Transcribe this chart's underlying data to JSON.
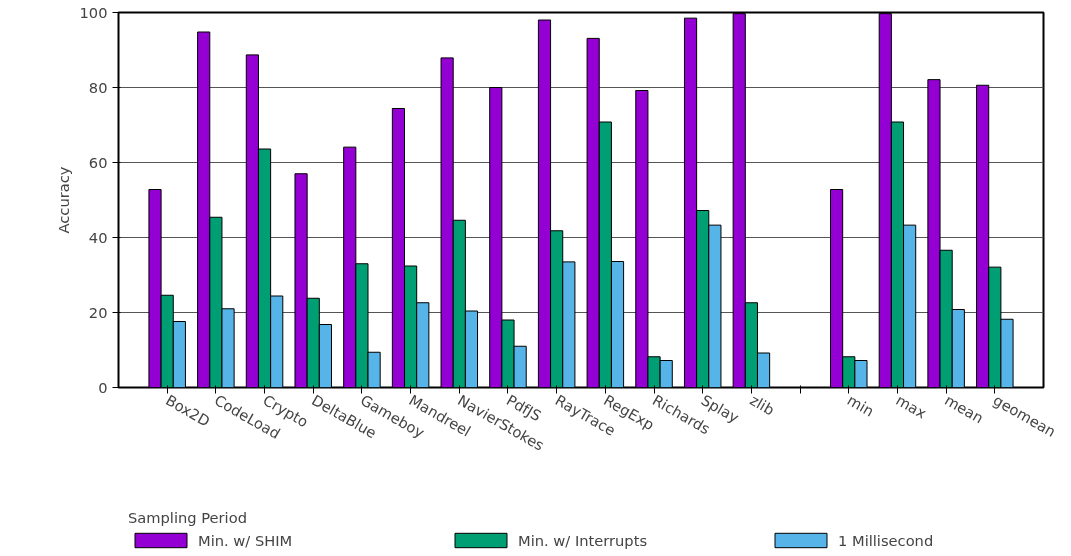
{
  "chart_data": {
    "type": "bar",
    "ylabel": "Accuracy",
    "legend_title": "Sampling Period",
    "categories": [
      "Box2D",
      "CodeLoad",
      "Crypto",
      "DeltaBlue",
      "Gameboy",
      "Mandreel",
      "NavierStokes",
      "PdfJS",
      "RayTrace",
      "RegExp",
      "Richards",
      "Splay",
      "zlib",
      null,
      "min",
      "max",
      "mean",
      "geomean"
    ],
    "series": [
      {
        "name": "Min. w/ SHIM",
        "color": "#9400d3",
        "values": [
          52.8,
          94.8,
          88.7,
          57,
          64.1,
          74.4,
          87.9,
          80,
          98,
          93.1,
          79.2,
          98.5,
          99.7,
          null,
          52.8,
          99.7,
          82.1,
          80.6
        ]
      },
      {
        "name": "Min. w/ Interrupts",
        "color": "#009e73",
        "values": [
          24.6,
          45.4,
          63.6,
          23.8,
          33,
          32.4,
          44.6,
          18,
          41.8,
          70.8,
          8.2,
          47.2,
          22.6,
          null,
          8.2,
          70.8,
          36.6,
          32.1
        ]
      },
      {
        "name": "1 Millisecond",
        "color": "#56b4e9",
        "values": [
          17.6,
          21,
          24.4,
          16.8,
          9.4,
          22.6,
          20.4,
          11,
          33.5,
          33.6,
          7.2,
          43.3,
          9.2,
          null,
          7.2,
          43.3,
          20.8,
          18.2
        ]
      }
    ],
    "ylim": [
      0,
      100
    ],
    "yticks": [
      0,
      20,
      40,
      60,
      80,
      100
    ],
    "grid": "y",
    "legend": "bottom"
  }
}
